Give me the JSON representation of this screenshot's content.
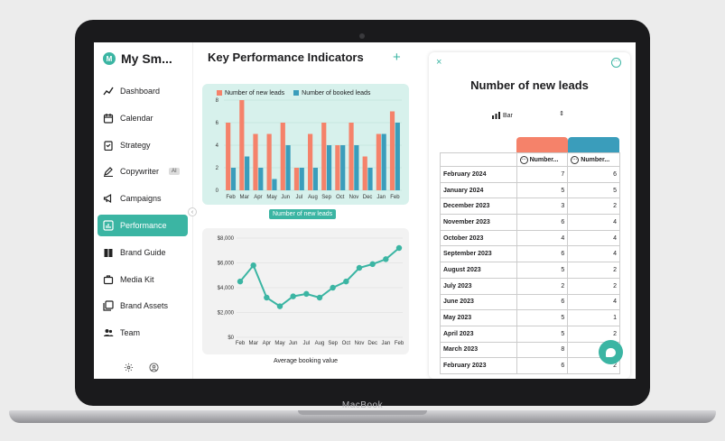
{
  "device": {
    "label": "MacBook"
  },
  "sidebar": {
    "brand": {
      "logo_letter": "M",
      "name": "My Sm..."
    },
    "items": [
      {
        "label": "Dashboard",
        "icon": "trend-icon",
        "active": false
      },
      {
        "label": "Calendar",
        "icon": "calendar-icon",
        "active": false
      },
      {
        "label": "Strategy",
        "icon": "clipboard-icon",
        "active": false
      },
      {
        "label": "Copywriter",
        "icon": "pen-icon",
        "active": false,
        "badge": "AI"
      },
      {
        "label": "Campaigns",
        "icon": "megaphone-icon",
        "active": false
      },
      {
        "label": "Performance",
        "icon": "bar-chart-icon",
        "active": true
      },
      {
        "label": "Brand Guide",
        "icon": "book-icon",
        "active": false
      },
      {
        "label": "Media Kit",
        "icon": "briefcase-icon",
        "active": false
      },
      {
        "label": "Brand Assets",
        "icon": "images-icon",
        "active": false
      },
      {
        "label": "Team",
        "icon": "users-icon",
        "active": false
      }
    ],
    "collapse_glyph": "‹"
  },
  "main": {
    "title": "Key Performance Indicators",
    "add_glyph": "+",
    "bar_chart_caption": "Number of new leads",
    "line_chart_caption": "Average booking value"
  },
  "colors": {
    "accent": "#3bb5a3",
    "salmon": "#f5826a",
    "teal_bar": "#3a9dbb"
  },
  "chart_data": [
    {
      "type": "bar",
      "categories": [
        "Feb",
        "Mar",
        "Apr",
        "May",
        "Jun",
        "Jul",
        "Aug",
        "Sep",
        "Oct",
        "Nov",
        "Dec",
        "Jan",
        "Feb"
      ],
      "series": [
        {
          "name": "Number of new leads",
          "color": "#f5826a",
          "values": [
            6,
            8,
            5,
            5,
            6,
            2,
            5,
            6,
            4,
            6,
            3,
            5,
            7
          ]
        },
        {
          "name": "Number of booked leads",
          "color": "#3a9dbb",
          "values": [
            2,
            3,
            2,
            1,
            4,
            2,
            2,
            4,
            4,
            4,
            2,
            5,
            6
          ]
        }
      ],
      "ylim": [
        0,
        8
      ],
      "yticks": [
        0,
        2,
        4,
        6,
        8
      ],
      "legend": "top",
      "grid": true
    },
    {
      "type": "line",
      "categories": [
        "Feb",
        "Mar",
        "Apr",
        "May",
        "Jun",
        "Jul",
        "Aug",
        "Sep",
        "Oct",
        "Nov",
        "Dec",
        "Jan",
        "Feb"
      ],
      "series": [
        {
          "color": "#3bb5a3",
          "values": [
            4500,
            5800,
            3200,
            2500,
            3300,
            3500,
            3200,
            4000,
            4500,
            5600,
            5900,
            6300,
            7200
          ]
        }
      ],
      "ylim": [
        0,
        8000
      ],
      "yticks": [
        "$0",
        "$2,000",
        "$4,000",
        "$6,000",
        "$8,000"
      ],
      "grid": true
    }
  ],
  "panel": {
    "close_glyph": "×",
    "more_glyph": "⋯",
    "title": "Number of new leads",
    "viz_type": "Bar",
    "columns": [
      "Number...",
      "Number..."
    ],
    "rows": [
      {
        "month": "February 2024",
        "a": "7",
        "b": "6"
      },
      {
        "month": "January 2024",
        "a": "5",
        "b": "5"
      },
      {
        "month": "December 2023",
        "a": "3",
        "b": "2"
      },
      {
        "month": "November 2023",
        "a": "6",
        "b": "4"
      },
      {
        "month": "October 2023",
        "a": "4",
        "b": "4"
      },
      {
        "month": "September 2023",
        "a": "6",
        "b": "4"
      },
      {
        "month": "August 2023",
        "a": "5",
        "b": "2"
      },
      {
        "month": "July 2023",
        "a": "2",
        "b": "2"
      },
      {
        "month": "June 2023",
        "a": "6",
        "b": "4"
      },
      {
        "month": "May 2023",
        "a": "5",
        "b": "1"
      },
      {
        "month": "April 2023",
        "a": "5",
        "b": "2"
      },
      {
        "month": "March 2023",
        "a": "8",
        "b": "3"
      },
      {
        "month": "February 2023",
        "a": "6",
        "b": "2"
      }
    ]
  }
}
